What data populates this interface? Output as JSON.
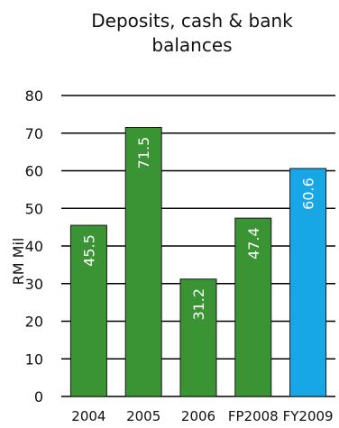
{
  "chart_data": {
    "type": "bar",
    "title_lines": [
      "Deposits, cash & bank",
      "balances"
    ],
    "ylabel": "RM Mil",
    "xlabel": "",
    "categories": [
      "2004",
      "2005",
      "2006",
      "FP2008",
      "FY2009"
    ],
    "values": [
      45.5,
      71.5,
      31.2,
      47.4,
      60.6
    ],
    "value_labels": [
      "45.5",
      "71.5",
      "31.2",
      "47.4",
      "60.6"
    ],
    "bar_colors": [
      "#3a9434",
      "#3a9434",
      "#3a9434",
      "#3a9434",
      "#17a6e6"
    ],
    "ylim": [
      0,
      80
    ],
    "yticks": [
      "0",
      "10",
      "20",
      "30",
      "40",
      "50",
      "60",
      "70",
      "80"
    ],
    "grid": true,
    "legend": "none"
  }
}
